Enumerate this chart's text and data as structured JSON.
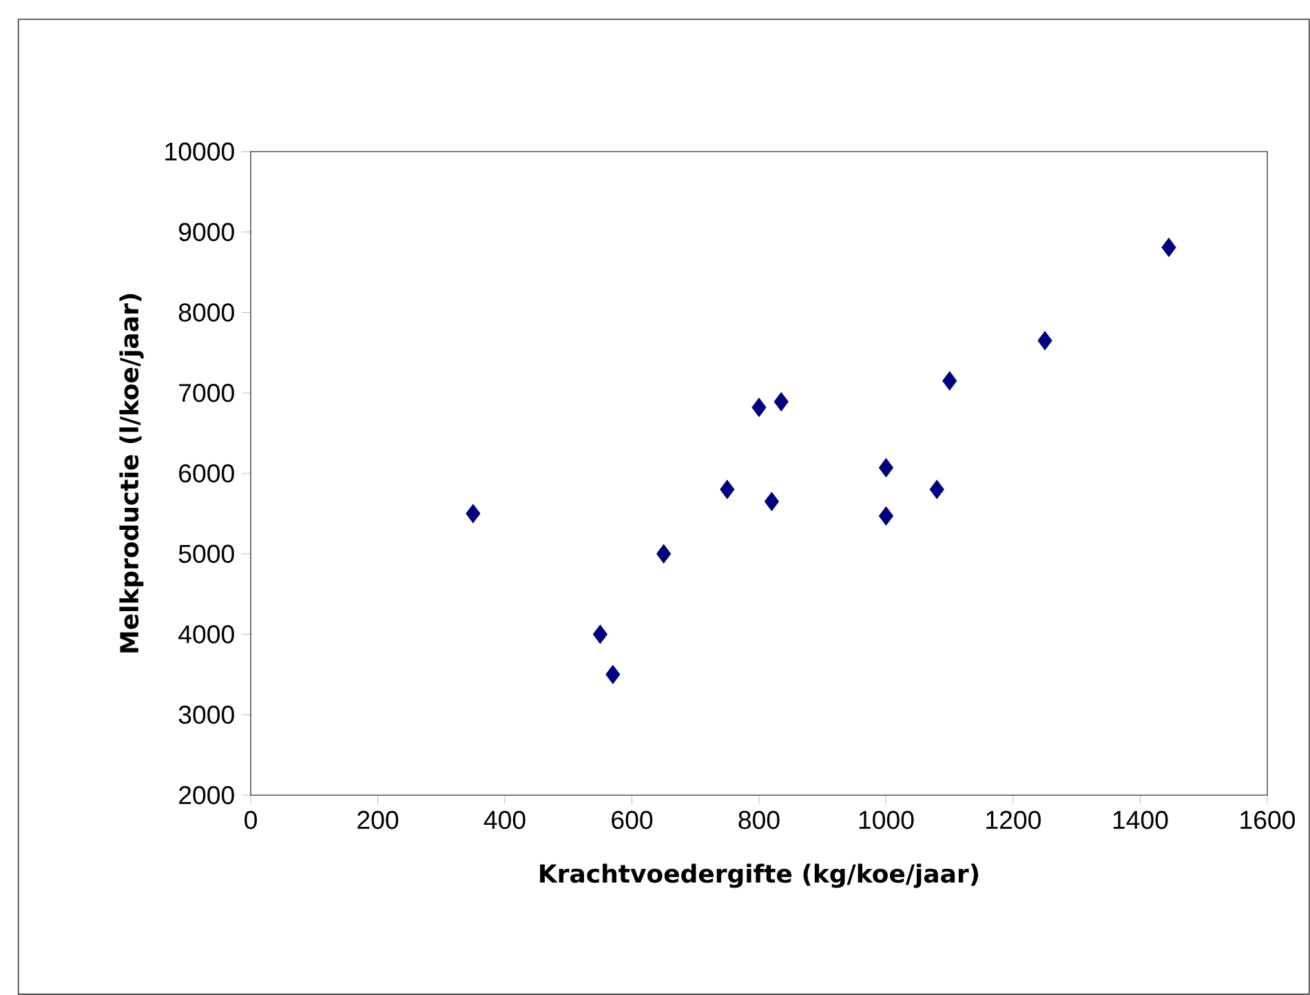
{
  "chart_data": {
    "type": "scatter",
    "xlabel": "Krachtvoedergifte (kg/koe/jaar)",
    "ylabel": "Melkproductie (l/koe/jaar)",
    "x": [
      350,
      550,
      570,
      650,
      750,
      800,
      835,
      820,
      1000,
      1000,
      1080,
      1100,
      1250,
      1445
    ],
    "values": [
      5500,
      4000,
      3500,
      5000,
      5800,
      6820,
      6890,
      5650,
      6070,
      5470,
      5800,
      7150,
      7650,
      8810
    ],
    "color": "#000080",
    "marker": "diamond",
    "xlim": [
      0,
      1600
    ],
    "xticks": [
      0,
      200,
      400,
      600,
      800,
      1000,
      1200,
      1400,
      1600
    ],
    "ylim": [
      2000,
      10000
    ],
    "yticks": [
      2000,
      3000,
      4000,
      5000,
      6000,
      7000,
      8000,
      9000,
      10000
    ]
  }
}
